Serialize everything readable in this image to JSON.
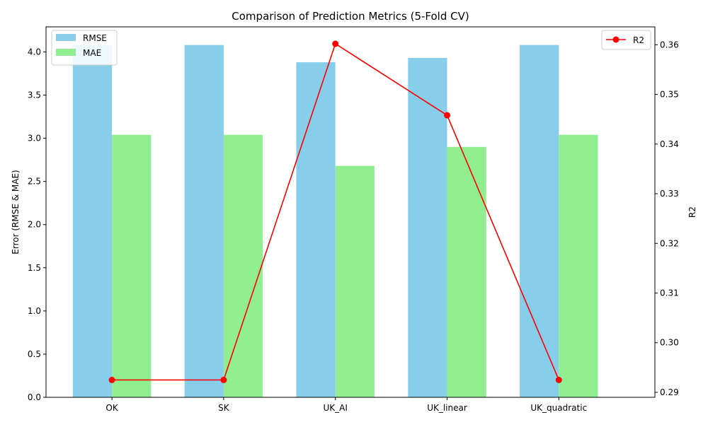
{
  "chart_data": {
    "type": "bar",
    "title": "Comparison of Prediction Metrics (5-Fold CV)",
    "xlabel": "",
    "ylabel": "Error (RMSE & MAE)",
    "y2label": "R2",
    "categories": [
      "OK",
      "SK",
      "UK_AI",
      "UK_linear",
      "UK_quadratic"
    ],
    "series": [
      {
        "name": "RMSE",
        "type": "bar",
        "axis": "left",
        "color": "#87CEEB",
        "values": [
          4.08,
          4.08,
          3.88,
          3.93,
          4.08
        ]
      },
      {
        "name": "MAE",
        "type": "bar",
        "axis": "left",
        "color": "#90EE90",
        "values": [
          3.04,
          3.04,
          2.68,
          2.9,
          3.04
        ]
      },
      {
        "name": "R2",
        "type": "line",
        "axis": "right",
        "color": "#FF0000",
        "marker": "circle",
        "values": [
          0.2925,
          0.2925,
          0.3602,
          0.3458,
          0.2925
        ]
      }
    ],
    "ylim": [
      0,
      4.29
    ],
    "yticks": [
      "0.0",
      "0.5",
      "1.0",
      "1.5",
      "2.0",
      "2.5",
      "3.0",
      "3.5",
      "4.0"
    ],
    "y2lim": [
      0.289,
      0.3636
    ],
    "y2ticks": [
      "0.29",
      "0.30",
      "0.31",
      "0.32",
      "0.33",
      "0.34",
      "0.35",
      "0.36"
    ],
    "legend_left_position": "top-left",
    "legend_right_position": "top-right",
    "grid": false
  }
}
